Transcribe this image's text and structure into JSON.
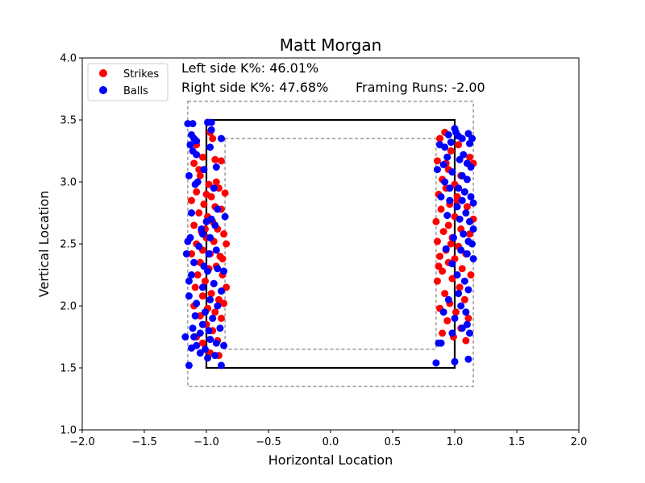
{
  "chart_data": {
    "type": "scatter",
    "title": "Matt Morgan",
    "xlabel": "Horizontal Location",
    "ylabel": "Vertical Location",
    "xlim": [
      -2.0,
      2.0
    ],
    "ylim": [
      1.0,
      4.0
    ],
    "xticks": [
      "−2.0",
      "−1.5",
      "−1.0",
      "−0.5",
      "0.0",
      "0.5",
      "1.0",
      "1.5",
      "2.0"
    ],
    "yticks": [
      "1.0",
      "1.5",
      "2.0",
      "2.5",
      "3.0",
      "3.5",
      "4.0"
    ],
    "grid": false,
    "legend_position": "top-left",
    "annotations": {
      "left_k": "Left side K%: 46.01%",
      "right_k": "Right side K%: 47.68%",
      "framing": "Framing Runs: -2.00"
    },
    "strike_zone": {
      "x": [
        -1.0,
        1.0
      ],
      "y": [
        1.5,
        3.5
      ]
    },
    "outer_zone": {
      "x": [
        -1.15,
        1.15
      ],
      "y": [
        1.35,
        3.65
      ]
    },
    "inner_zone": {
      "x": [
        -0.85,
        0.85
      ],
      "y": [
        1.65,
        3.35
      ]
    },
    "colors": {
      "strikes": "#ff0000",
      "balls": "#0000ff",
      "zone": "#000000",
      "shadow": "#808080"
    },
    "series": [
      {
        "name": "Strikes",
        "color": "#ff0000",
        "points": [
          [
            -0.97,
            3.4
          ],
          [
            -0.95,
            3.35
          ],
          [
            -1.08,
            3.3
          ],
          [
            -1.03,
            3.2
          ],
          [
            -0.93,
            3.18
          ],
          [
            -1.1,
            3.15
          ],
          [
            -0.88,
            3.17
          ],
          [
            -1.05,
            3.05
          ],
          [
            -0.98,
            2.98
          ],
          [
            -0.9,
            2.95
          ],
          [
            -1.08,
            2.92
          ],
          [
            -1.0,
            2.9
          ],
          [
            -0.96,
            2.88
          ],
          [
            -0.85,
            2.91
          ],
          [
            -1.12,
            2.85
          ],
          [
            -1.02,
            2.82
          ],
          [
            -0.93,
            2.8
          ],
          [
            -0.88,
            2.78
          ],
          [
            -1.06,
            2.75
          ],
          [
            -0.99,
            2.72
          ],
          [
            -0.95,
            2.68
          ],
          [
            -1.1,
            2.65
          ],
          [
            -0.91,
            2.62
          ],
          [
            -1.04,
            2.6
          ],
          [
            -0.86,
            2.58
          ],
          [
            -1.0,
            2.55
          ],
          [
            -0.94,
            2.52
          ],
          [
            -1.08,
            2.5
          ],
          [
            -0.84,
            2.5
          ],
          [
            -1.03,
            2.45
          ],
          [
            -0.97,
            2.42
          ],
          [
            -0.89,
            2.4
          ],
          [
            -1.12,
            2.42
          ],
          [
            -1.05,
            2.35
          ],
          [
            -0.92,
            2.32
          ],
          [
            -0.98,
            2.3
          ],
          [
            -1.07,
            2.25
          ],
          [
            -0.87,
            2.25
          ],
          [
            -1.01,
            2.2
          ],
          [
            -0.94,
            2.18
          ],
          [
            -0.84,
            2.15
          ],
          [
            -1.09,
            2.15
          ],
          [
            -0.96,
            2.1
          ],
          [
            -1.03,
            2.08
          ],
          [
            -0.9,
            2.05
          ],
          [
            -0.86,
            2.02
          ],
          [
            -1.1,
            2.0
          ],
          [
            -0.99,
            1.98
          ],
          [
            -0.93,
            1.95
          ],
          [
            -1.05,
            1.92
          ],
          [
            -0.88,
            1.9
          ],
          [
            -1.0,
            1.85
          ],
          [
            -0.95,
            1.8
          ],
          [
            -1.08,
            1.75
          ],
          [
            -0.91,
            1.72
          ],
          [
            -1.03,
            1.7
          ],
          [
            -0.97,
            1.62
          ],
          [
            -0.9,
            1.6
          ],
          [
            -1.06,
            3.1
          ],
          [
            -0.92,
            3.0
          ],
          [
            -1.01,
            2.62
          ],
          [
            -0.87,
            2.38
          ],
          [
            0.92,
            3.4
          ],
          [
            0.88,
            3.35
          ],
          [
            1.03,
            3.3
          ],
          [
            0.97,
            3.25
          ],
          [
            1.12,
            3.2
          ],
          [
            0.86,
            3.17
          ],
          [
            1.15,
            3.15
          ],
          [
            0.95,
            3.1
          ],
          [
            1.05,
            3.05
          ],
          [
            0.9,
            3.02
          ],
          [
            1.0,
            2.98
          ],
          [
            0.93,
            2.95
          ],
          [
            1.08,
            2.92
          ],
          [
            0.87,
            2.9
          ],
          [
            1.02,
            2.85
          ],
          [
            0.96,
            2.82
          ],
          [
            1.1,
            2.8
          ],
          [
            0.89,
            2.78
          ],
          [
            1.0,
            2.72
          ],
          [
            1.15,
            2.7
          ],
          [
            0.85,
            2.68
          ],
          [
            0.95,
            2.65
          ],
          [
            1.05,
            2.62
          ],
          [
            0.91,
            2.6
          ],
          [
            1.12,
            2.58
          ],
          [
            0.98,
            2.55
          ],
          [
            0.86,
            2.52
          ],
          [
            1.03,
            2.48
          ],
          [
            0.93,
            2.45
          ],
          [
            1.09,
            2.42
          ],
          [
            0.88,
            2.4
          ],
          [
            1.0,
            2.38
          ],
          [
            0.95,
            2.35
          ],
          [
            0.87,
            2.32
          ],
          [
            1.06,
            2.3
          ],
          [
            0.9,
            2.28
          ],
          [
            1.13,
            2.25
          ],
          [
            0.98,
            2.22
          ],
          [
            0.86,
            2.2
          ],
          [
            1.04,
            2.15
          ],
          [
            0.92,
            2.1
          ],
          [
            1.08,
            2.05
          ],
          [
            0.96,
            2.02
          ],
          [
            0.88,
            1.98
          ],
          [
            1.01,
            1.95
          ],
          [
            1.11,
            1.9
          ],
          [
            0.94,
            1.88
          ],
          [
            1.05,
            1.82
          ],
          [
            0.9,
            1.78
          ],
          [
            0.99,
            1.75
          ],
          [
            1.09,
            1.72
          ],
          [
            0.93,
            3.15
          ],
          [
            1.02,
            2.88
          ],
          [
            0.97,
            2.5
          ]
        ]
      },
      {
        "name": "Balls",
        "color": "#0000ff",
        "points": [
          [
            -1.15,
            3.47
          ],
          [
            -1.11,
            3.47
          ],
          [
            -0.99,
            3.48
          ],
          [
            -0.96,
            3.48
          ],
          [
            -1.12,
            3.38
          ],
          [
            -1.1,
            3.35
          ],
          [
            -1.08,
            3.33
          ],
          [
            -1.13,
            3.3
          ],
          [
            -0.88,
            3.35
          ],
          [
            -0.96,
            3.42
          ],
          [
            -1.11,
            3.25
          ],
          [
            -1.08,
            3.22
          ],
          [
            -0.97,
            3.28
          ],
          [
            -0.92,
            3.12
          ],
          [
            -1.14,
            3.05
          ],
          [
            -1.02,
            3.1
          ],
          [
            -1.09,
            2.98
          ],
          [
            -0.94,
            2.95
          ],
          [
            -0.85,
            2.72
          ],
          [
            -0.91,
            2.78
          ],
          [
            -1.12,
            2.75
          ],
          [
            -1.0,
            2.68
          ],
          [
            -0.93,
            2.65
          ],
          [
            -1.03,
            2.58
          ],
          [
            -1.13,
            2.55
          ],
          [
            -1.15,
            2.52
          ],
          [
            -0.97,
            2.55
          ],
          [
            -1.06,
            2.48
          ],
          [
            -0.92,
            2.45
          ],
          [
            -1.16,
            2.42
          ],
          [
            -0.98,
            2.42
          ],
          [
            -1.1,
            2.35
          ],
          [
            -1.02,
            2.32
          ],
          [
            -0.91,
            2.3
          ],
          [
            -1.12,
            2.25
          ],
          [
            -0.99,
            2.28
          ],
          [
            -0.86,
            2.28
          ],
          [
            -1.14,
            2.2
          ],
          [
            -0.94,
            2.18
          ],
          [
            -1.03,
            2.15
          ],
          [
            -0.88,
            2.12
          ],
          [
            -1.14,
            2.08
          ],
          [
            -0.97,
            2.05
          ],
          [
            -1.08,
            2.02
          ],
          [
            -0.91,
            2.0
          ],
          [
            -1.01,
            1.95
          ],
          [
            -1.09,
            1.92
          ],
          [
            -0.95,
            1.9
          ],
          [
            -1.03,
            1.85
          ],
          [
            -1.11,
            1.82
          ],
          [
            -0.89,
            1.82
          ],
          [
            -0.98,
            1.8
          ],
          [
            -1.05,
            1.78
          ],
          [
            -1.1,
            1.75
          ],
          [
            -1.17,
            1.75
          ],
          [
            -0.97,
            1.73
          ],
          [
            -0.92,
            1.7
          ],
          [
            -1.08,
            1.68
          ],
          [
            -1.12,
            1.66
          ],
          [
            -0.86,
            1.68
          ],
          [
            -1.01,
            1.65
          ],
          [
            -1.05,
            1.62
          ],
          [
            -0.93,
            1.6
          ],
          [
            -0.99,
            1.58
          ],
          [
            -0.88,
            1.52
          ],
          [
            -1.14,
            1.52
          ],
          [
            -1.04,
            2.62
          ],
          [
            -0.96,
            2.7
          ],
          [
            -1.07,
            3.0
          ],
          [
            0.88,
            3.3
          ],
          [
            0.92,
            3.28
          ],
          [
            0.95,
            3.38
          ],
          [
            0.97,
            3.32
          ],
          [
            1.0,
            3.43
          ],
          [
            1.01,
            3.4
          ],
          [
            1.03,
            3.37
          ],
          [
            1.06,
            3.35
          ],
          [
            1.11,
            3.39
          ],
          [
            1.14,
            3.35
          ],
          [
            1.12,
            3.31
          ],
          [
            1.07,
            3.22
          ],
          [
            1.04,
            3.18
          ],
          [
            1.1,
            3.15
          ],
          [
            1.13,
            3.12
          ],
          [
            0.94,
            3.2
          ],
          [
            0.91,
            3.14
          ],
          [
            0.86,
            3.1
          ],
          [
            0.98,
            3.08
          ],
          [
            1.06,
            3.05
          ],
          [
            1.1,
            3.02
          ],
          [
            0.92,
            3.0
          ],
          [
            1.03,
            2.95
          ],
          [
            1.08,
            2.92
          ],
          [
            1.13,
            2.88
          ],
          [
            0.89,
            2.88
          ],
          [
            0.96,
            2.85
          ],
          [
            1.15,
            2.83
          ],
          [
            1.02,
            2.8
          ],
          [
            1.09,
            2.75
          ],
          [
            0.94,
            2.73
          ],
          [
            1.04,
            2.7
          ],
          [
            1.12,
            2.68
          ],
          [
            1.15,
            2.62
          ],
          [
            1.07,
            2.58
          ],
          [
            0.99,
            2.55
          ],
          [
            1.11,
            2.52
          ],
          [
            1.14,
            2.5
          ],
          [
            0.93,
            2.46
          ],
          [
            1.05,
            2.45
          ],
          [
            1.1,
            2.42
          ],
          [
            1.15,
            2.38
          ],
          [
            0.98,
            2.34
          ],
          [
            1.02,
            2.25
          ],
          [
            1.08,
            2.2
          ],
          [
            1.11,
            2.13
          ],
          [
            1.03,
            2.1
          ],
          [
            0.95,
            2.05
          ],
          [
            1.05,
            2.0
          ],
          [
            1.09,
            1.95
          ],
          [
            0.91,
            1.95
          ],
          [
            1.0,
            1.9
          ],
          [
            1.1,
            1.85
          ],
          [
            1.06,
            1.82
          ],
          [
            0.98,
            1.78
          ],
          [
            1.12,
            1.78
          ],
          [
            0.89,
            1.7
          ],
          [
            0.87,
            1.7
          ],
          [
            1.0,
            1.55
          ],
          [
            1.11,
            1.57
          ],
          [
            0.85,
            1.54
          ],
          [
            1.06,
            2.85
          ],
          [
            0.96,
            2.95
          ]
        ]
      }
    ]
  }
}
